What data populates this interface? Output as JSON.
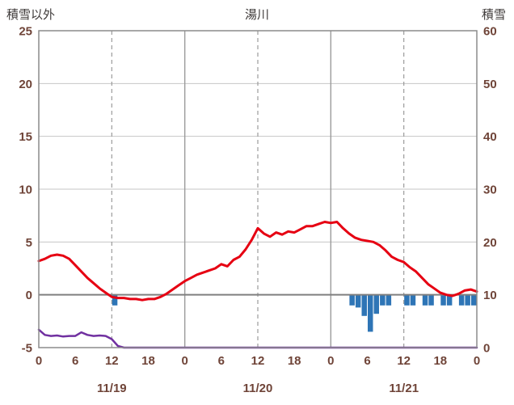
{
  "header": {
    "left_axis_title": "積雪以外",
    "station_title": "湯川",
    "right_axis_title": "積雪"
  },
  "colors": {
    "temperature": "#e60012",
    "snow": "#7030a0",
    "precip": "#2e75b6",
    "grid": "#c6c6c6",
    "zero_line": "#7f7f7f",
    "border": "#8c8c8c",
    "day_line": "#9b9b9b",
    "dashed_line": "#9b9b9b",
    "tick_text": "#6f4438",
    "title_text": "#3e3a39",
    "background": "#ffffff"
  },
  "chart_data": {
    "type": "line+bar",
    "title": "湯川",
    "left_axis": {
      "title": "積雪以外",
      "min": -5,
      "max": 25,
      "ticks": [
        25,
        20,
        15,
        10,
        5,
        0,
        -5
      ]
    },
    "right_axis": {
      "title": "積雪",
      "min": 0,
      "max": 60,
      "ticks": [
        60,
        50,
        40,
        30,
        20,
        10,
        0
      ]
    },
    "x_axis": {
      "days": [
        "11/19",
        "11/20",
        "11/21"
      ],
      "hours_per_day": 24,
      "hour_ticks": [
        0,
        6,
        12,
        18
      ],
      "end_tick_label": "0",
      "dashed_hour_lines": [
        12,
        36,
        60
      ],
      "solid_hour_lines": [
        24,
        48
      ]
    },
    "series": [
      {
        "name": "temperature",
        "type": "line",
        "axis": "left",
        "values": [
          3.2,
          3.4,
          3.7,
          3.8,
          3.7,
          3.4,
          2.8,
          2.2,
          1.6,
          1.1,
          0.6,
          0.2,
          -0.2,
          -0.3,
          -0.3,
          -0.4,
          -0.4,
          -0.5,
          -0.4,
          -0.4,
          -0.2,
          0.1,
          0.5,
          0.9,
          1.3,
          1.6,
          1.9,
          2.1,
          2.3,
          2.5,
          2.9,
          2.7,
          3.3,
          3.6,
          4.3,
          5.2,
          6.3,
          5.8,
          5.5,
          5.9,
          5.7,
          6.0,
          5.9,
          6.2,
          6.5,
          6.5,
          6.7,
          6.9,
          6.8,
          6.9,
          6.3,
          5.8,
          5.4,
          5.2,
          5.1,
          5.0,
          4.7,
          4.2,
          3.6,
          3.3,
          3.1,
          2.6,
          2.2,
          1.6,
          1.0,
          0.6,
          0.2,
          0.0,
          -0.1,
          0.1,
          0.4,
          0.5,
          0.3
        ]
      },
      {
        "name": "snow_depth",
        "type": "line",
        "axis": "right",
        "values": [
          3.4,
          2.4,
          2.2,
          2.3,
          2.1,
          2.2,
          2.2,
          2.9,
          2.4,
          2.2,
          2.3,
          2.2,
          1.6,
          0.3,
          0,
          0,
          0,
          0,
          0,
          0,
          0,
          0,
          0,
          0,
          0,
          0,
          0,
          0,
          0,
          0,
          0,
          0,
          0,
          0,
          0,
          0,
          0,
          0,
          0,
          0,
          0,
          0,
          0,
          0,
          0,
          0,
          0,
          0,
          0,
          0,
          0,
          0,
          0,
          0,
          0,
          0,
          0,
          0,
          0,
          0,
          0,
          0,
          0,
          0,
          0,
          0,
          0,
          0,
          0,
          0,
          0,
          0,
          0
        ]
      },
      {
        "name": "precipitation",
        "type": "bar",
        "axis": "left",
        "direction": "down-from-zero",
        "values": [
          0,
          0,
          0,
          0,
          0,
          0,
          0,
          0,
          0,
          0,
          0,
          0,
          1,
          0,
          0,
          0,
          0,
          0,
          0,
          0,
          0,
          0,
          0,
          0,
          0,
          0,
          0,
          0,
          0,
          0,
          0,
          0,
          0,
          0,
          0,
          0,
          0,
          0,
          0,
          0,
          0,
          0,
          0,
          0,
          0,
          0,
          0,
          0,
          0,
          0,
          0,
          1,
          1.2,
          2,
          3.5,
          1.8,
          1,
          1,
          0,
          0,
          1,
          1,
          0,
          1,
          1,
          0,
          1,
          1,
          0,
          1,
          1,
          1
        ]
      }
    ]
  }
}
